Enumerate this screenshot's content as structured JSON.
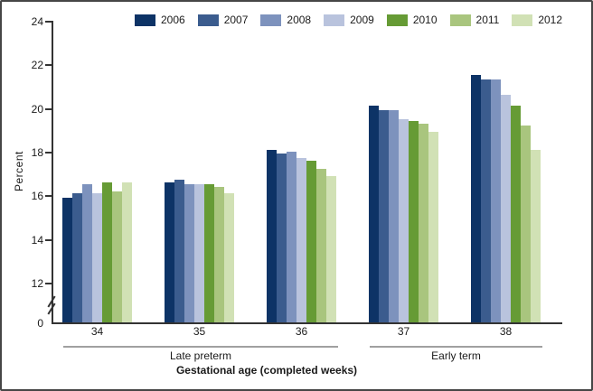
{
  "figure": {
    "background": "#ffffff",
    "border_color": "#464646",
    "axis_color": "#333333",
    "text_color": "#1a1a1a"
  },
  "chart_data": {
    "type": "bar",
    "title": "",
    "ylabel": "Percent",
    "xlabel": "Gestational age (completed weeks)",
    "categories": [
      "34",
      "35",
      "36",
      "37",
      "38"
    ],
    "category_groups": [
      {
        "label": "Late preterm",
        "start_index": 0,
        "end_index": 2
      },
      {
        "label": "Early term",
        "start_index": 3,
        "end_index": 4
      }
    ],
    "y_ticks": [
      0,
      12,
      14,
      16,
      18,
      20,
      22,
      24
    ],
    "ylim": [
      0,
      24
    ],
    "ylim_displayed": [
      12,
      24
    ],
    "axis_break_between": [
      0,
      12
    ],
    "grid": false,
    "legend_position": "top",
    "series": [
      {
        "name": "2006",
        "color": "#0d3366",
        "values": [
          15.9,
          16.6,
          18.1,
          20.1,
          21.5
        ]
      },
      {
        "name": "2007",
        "color": "#3b5c8e",
        "values": [
          16.1,
          16.7,
          17.9,
          19.9,
          21.3
        ]
      },
      {
        "name": "2008",
        "color": "#7d92bd",
        "values": [
          16.5,
          16.5,
          18.0,
          19.9,
          21.3
        ]
      },
      {
        "name": "2009",
        "color": "#b9c3dd",
        "values": [
          16.1,
          16.5,
          17.7,
          19.5,
          20.6
        ]
      },
      {
        "name": "2010",
        "color": "#669b35",
        "values": [
          16.6,
          16.5,
          17.6,
          19.4,
          20.1
        ]
      },
      {
        "name": "2011",
        "color": "#a9c57e",
        "values": [
          16.2,
          16.4,
          17.2,
          19.3,
          19.2
        ]
      },
      {
        "name": "2012",
        "color": "#d1e1b5",
        "values": [
          16.6,
          16.1,
          16.9,
          18.9,
          18.1
        ]
      }
    ]
  }
}
